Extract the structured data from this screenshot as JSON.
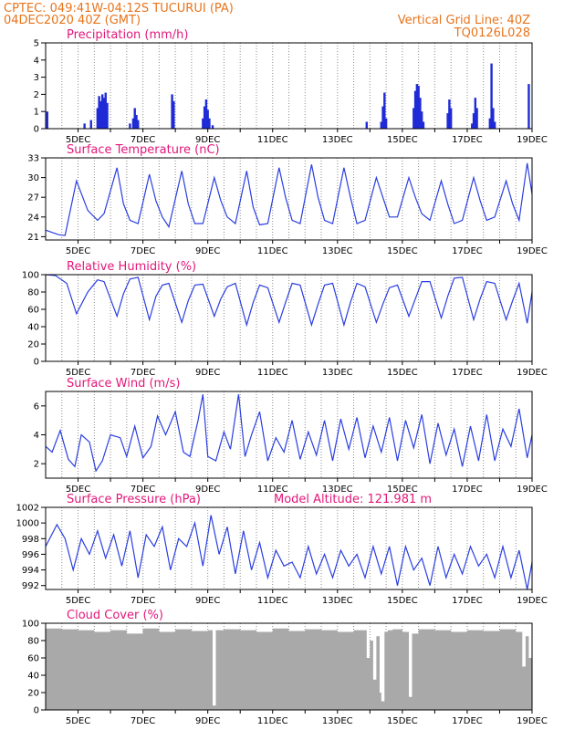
{
  "header": {
    "line1": "CPTEC:   049:41W-04:12S   TUCURUI (PA)",
    "line2": "04DEC2020 40Z (GMT)",
    "grid_note": "Vertical Grid Line: 40Z",
    "code": "TQ0126L028"
  },
  "colors": {
    "header": "#e8741c",
    "title": "#e2187a",
    "line": "#2a3ee0",
    "bar": "#1f2bd6",
    "cloud": "#a9a9a9",
    "grid": "#8c8c8c"
  },
  "chart_data": [
    {
      "type": "bar",
      "title": "Precipitation (mm/h)",
      "ylim": [
        0,
        5
      ],
      "yticks": [
        0,
        1,
        2,
        3,
        4,
        5
      ],
      "xlim": [
        4,
        19
      ],
      "xtick_labels": [
        "5DEC",
        "7DEC",
        "9DEC",
        "11DEC",
        "13DEC",
        "15DEC",
        "17DEC",
        "19DEC"
      ],
      "x": [
        4.05,
        5.2,
        5.4,
        5.6,
        5.65,
        5.7,
        5.75,
        5.8,
        5.85,
        5.9,
        6.6,
        6.7,
        6.75,
        6.8,
        6.85,
        7.9,
        7.95,
        8.85,
        8.9,
        8.95,
        9.0,
        9.05,
        9.15,
        13.9,
        14.35,
        14.4,
        14.45,
        14.5,
        15.35,
        15.4,
        15.45,
        15.5,
        15.55,
        15.6,
        15.65,
        16.4,
        16.45,
        16.5,
        17.15,
        17.2,
        17.25,
        17.3,
        17.7,
        17.75,
        17.8,
        17.85,
        18.9
      ],
      "values": [
        1.0,
        0.3,
        0.5,
        1.2,
        1.9,
        1.6,
        2.0,
        1.8,
        2.1,
        1.5,
        0.3,
        0.6,
        1.2,
        0.8,
        0.5,
        2.0,
        1.6,
        0.6,
        1.3,
        1.7,
        1.1,
        0.6,
        0.2,
        0.4,
        0.4,
        1.3,
        2.1,
        0.6,
        1.2,
        2.2,
        2.6,
        2.5,
        1.8,
        1.0,
        0.4,
        0.9,
        1.7,
        1.2,
        0.3,
        0.9,
        1.8,
        1.2,
        0.6,
        3.8,
        1.2,
        0.4,
        2.6
      ]
    },
    {
      "type": "line",
      "title": "Surface Temperature (nC)",
      "ylim": [
        20.5,
        33
      ],
      "yticks": [
        21,
        24,
        27,
        30,
        33
      ],
      "xlim": [
        4,
        19
      ],
      "xtick_labels": [
        "5DEC",
        "7DEC",
        "9DEC",
        "11DEC",
        "13DEC",
        "15DEC",
        "17DEC",
        "19DEC"
      ],
      "x": [
        4.0,
        4.4,
        4.6,
        4.95,
        5.3,
        5.6,
        5.8,
        6.2,
        6.4,
        6.6,
        6.85,
        7.2,
        7.4,
        7.6,
        7.8,
        8.2,
        8.4,
        8.6,
        8.85,
        9.2,
        9.4,
        9.6,
        9.85,
        10.2,
        10.4,
        10.6,
        10.85,
        11.2,
        11.4,
        11.6,
        11.85,
        12.2,
        12.4,
        12.6,
        12.85,
        13.2,
        13.4,
        13.6,
        13.85,
        14.2,
        14.4,
        14.6,
        14.85,
        15.2,
        15.4,
        15.6,
        15.85,
        16.2,
        16.4,
        16.6,
        16.85,
        17.2,
        17.4,
        17.6,
        17.85,
        18.2,
        18.4,
        18.6,
        18.85,
        19.0
      ],
      "values": [
        22,
        21.3,
        21.2,
        29.5,
        25,
        23.5,
        24.5,
        31.5,
        26,
        23.5,
        23,
        30.5,
        26.5,
        24,
        22.5,
        31,
        26,
        23,
        23,
        30,
        26.5,
        24,
        23,
        31,
        25.5,
        22.8,
        23,
        31.5,
        27,
        23.5,
        23,
        32,
        27,
        23.5,
        23,
        31.5,
        27,
        23,
        23.5,
        30,
        27,
        24,
        24,
        30,
        27,
        24.5,
        23.5,
        29.5,
        26,
        23,
        23.5,
        30,
        26.5,
        23.5,
        24,
        29.5,
        26,
        23.5,
        32.2,
        27.5
      ]
    },
    {
      "type": "line",
      "title": "Relative Humidity (%)",
      "ylim": [
        0,
        100
      ],
      "yticks": [
        0,
        20,
        40,
        60,
        80,
        100
      ],
      "xlim": [
        4,
        19
      ],
      "xtick_labels": [
        "5DEC",
        "7DEC",
        "9DEC",
        "11DEC",
        "13DEC",
        "15DEC",
        "17DEC",
        "19DEC"
      ],
      "x": [
        4.0,
        4.3,
        4.65,
        4.95,
        5.3,
        5.6,
        5.8,
        6.2,
        6.4,
        6.6,
        6.85,
        7.2,
        7.4,
        7.6,
        7.8,
        8.2,
        8.4,
        8.6,
        8.85,
        9.2,
        9.4,
        9.6,
        9.85,
        10.2,
        10.4,
        10.6,
        10.85,
        11.2,
        11.4,
        11.6,
        11.85,
        12.2,
        12.4,
        12.6,
        12.85,
        13.2,
        13.4,
        13.6,
        13.85,
        14.2,
        14.4,
        14.6,
        14.85,
        15.2,
        15.4,
        15.6,
        15.85,
        16.2,
        16.4,
        16.6,
        16.85,
        17.2,
        17.4,
        17.6,
        17.85,
        18.2,
        18.4,
        18.6,
        18.85,
        19.0
      ],
      "values": [
        100,
        99,
        90,
        55,
        80,
        94,
        92,
        52,
        78,
        95,
        97,
        48,
        75,
        88,
        90,
        45,
        70,
        88,
        89,
        52,
        72,
        86,
        90,
        42,
        68,
        88,
        85,
        45,
        68,
        90,
        88,
        42,
        66,
        88,
        90,
        42,
        68,
        90,
        86,
        45,
        66,
        85,
        88,
        52,
        72,
        92,
        92,
        50,
        75,
        96,
        97,
        48,
        72,
        92,
        90,
        48,
        70,
        90,
        44,
        80
      ]
    },
    {
      "type": "line",
      "title": "Surface Wind (m/s)",
      "ylim": [
        1,
        7
      ],
      "yticks": [
        2,
        4,
        6
      ],
      "xlim": [
        4,
        19
      ],
      "xtick_labels": [
        "5DEC",
        "7DEC",
        "9DEC",
        "11DEC",
        "13DEC",
        "15DEC",
        "17DEC",
        "19DEC"
      ],
      "x": [
        4.0,
        4.2,
        4.45,
        4.7,
        4.9,
        5.1,
        5.35,
        5.55,
        5.75,
        6.0,
        6.3,
        6.5,
        6.75,
        7.0,
        7.25,
        7.45,
        7.7,
        8.0,
        8.25,
        8.45,
        8.7,
        8.85,
        9.0,
        9.25,
        9.5,
        9.7,
        9.95,
        10.15,
        10.35,
        10.6,
        10.85,
        11.1,
        11.35,
        11.6,
        11.85,
        12.1,
        12.35,
        12.6,
        12.85,
        13.1,
        13.35,
        13.6,
        13.85,
        14.1,
        14.35,
        14.6,
        14.85,
        15.1,
        15.35,
        15.6,
        15.85,
        16.1,
        16.35,
        16.6,
        16.85,
        17.1,
        17.35,
        17.6,
        17.85,
        18.1,
        18.35,
        18.6,
        18.85,
        19.0
      ],
      "values": [
        3.2,
        2.8,
        4.3,
        2.3,
        1.8,
        4.0,
        3.5,
        1.5,
        2.2,
        4.0,
        3.8,
        2.5,
        4.6,
        2.4,
        3.2,
        5.3,
        4.0,
        5.6,
        2.8,
        2.5,
        5.0,
        6.8,
        2.5,
        2.2,
        4.2,
        3.0,
        6.8,
        2.5,
        4.0,
        5.6,
        2.2,
        3.8,
        2.8,
        5.0,
        2.3,
        4.2,
        2.6,
        5.0,
        2.2,
        5.1,
        3.0,
        5.2,
        2.4,
        4.6,
        2.8,
        5.2,
        2.2,
        5.0,
        3.1,
        5.4,
        2.0,
        4.8,
        2.6,
        4.4,
        1.8,
        4.6,
        2.2,
        5.4,
        2.2,
        4.4,
        3.2,
        5.8,
        2.4,
        4.0
      ]
    },
    {
      "type": "line",
      "title": "Surface Pressure (hPa)",
      "subtitle": "Model Altitude: 121.981 m",
      "ylim": [
        991.5,
        1002
      ],
      "yticks": [
        992,
        994,
        996,
        998,
        1000,
        1002
      ],
      "xlim": [
        4,
        19
      ],
      "xtick_labels": [
        "5DEC",
        "7DEC",
        "9DEC",
        "11DEC",
        "13DEC",
        "15DEC",
        "17DEC",
        "19DEC"
      ],
      "x": [
        4.0,
        4.35,
        4.6,
        4.85,
        5.1,
        5.35,
        5.6,
        5.85,
        6.1,
        6.35,
        6.6,
        6.85,
        7.1,
        7.35,
        7.6,
        7.85,
        8.1,
        8.35,
        8.6,
        8.85,
        9.1,
        9.35,
        9.6,
        9.85,
        10.1,
        10.35,
        10.6,
        10.85,
        11.1,
        11.35,
        11.6,
        11.85,
        12.1,
        12.35,
        12.6,
        12.85,
        13.1,
        13.35,
        13.6,
        13.85,
        14.1,
        14.35,
        14.6,
        14.85,
        15.1,
        15.35,
        15.6,
        15.85,
        16.1,
        16.35,
        16.6,
        16.85,
        17.1,
        17.35,
        17.6,
        17.85,
        18.1,
        18.35,
        18.6,
        18.85,
        19.0
      ],
      "values": [
        997,
        999.8,
        998,
        994,
        998,
        996,
        999,
        995.5,
        998.5,
        994.5,
        999,
        993,
        998.5,
        997,
        999.5,
        994,
        998,
        997,
        1000,
        994.5,
        1001,
        996,
        999.5,
        993.5,
        999,
        994,
        997.5,
        993,
        996.5,
        994.5,
        995,
        993,
        997,
        993.5,
        996,
        993,
        996.5,
        994.5,
        996,
        993,
        997,
        993.5,
        997,
        992,
        997,
        994,
        995.5,
        992,
        997,
        993,
        996,
        993.5,
        997,
        994.5,
        996,
        993,
        997,
        993,
        996.5,
        991.5,
        995
      ]
    },
    {
      "type": "area",
      "title": "Cloud Cover (%)",
      "ylim": [
        0,
        100
      ],
      "yticks": [
        0,
        20,
        40,
        60,
        80,
        100
      ],
      "xlim": [
        4,
        19
      ],
      "xtick_labels": [
        "5DEC",
        "7DEC",
        "9DEC",
        "11DEC",
        "13DEC",
        "15DEC",
        "17DEC",
        "19DEC"
      ],
      "x": [
        4.0,
        4.5,
        5.0,
        5.5,
        6.0,
        6.5,
        7.0,
        7.5,
        8.0,
        8.5,
        9.0,
        9.15,
        9.25,
        9.5,
        10.0,
        10.5,
        11.0,
        11.5,
        12.0,
        12.5,
        13.0,
        13.5,
        13.9,
        14.0,
        14.1,
        14.2,
        14.3,
        14.35,
        14.45,
        14.55,
        14.7,
        15.0,
        15.2,
        15.3,
        15.5,
        16.0,
        16.5,
        17.0,
        17.5,
        18.0,
        18.5,
        18.7,
        18.8,
        18.9,
        19.0
      ],
      "values": [
        94,
        93,
        92,
        90,
        92,
        88,
        94,
        90,
        93,
        91,
        92,
        5,
        92,
        93,
        92,
        90,
        94,
        91,
        93,
        92,
        90,
        92,
        60,
        80,
        35,
        85,
        20,
        10,
        90,
        92,
        93,
        90,
        15,
        88,
        93,
        92,
        90,
        92,
        91,
        93,
        90,
        50,
        85,
        60,
        92
      ]
    }
  ]
}
